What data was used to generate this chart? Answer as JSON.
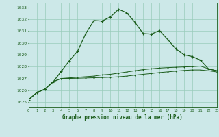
{
  "title": "Graphe pression niveau de la mer (hPa)",
  "background_color": "#cce8e8",
  "grid_color": "#99ccbb",
  "line_color": "#1a5c1a",
  "xlim": [
    0,
    23
  ],
  "ylim": [
    1024.6,
    1033.4
  ],
  "yticks": [
    1025,
    1026,
    1027,
    1028,
    1029,
    1030,
    1031,
    1032,
    1033
  ],
  "xticks": [
    0,
    1,
    2,
    3,
    4,
    5,
    6,
    7,
    8,
    9,
    10,
    11,
    12,
    13,
    14,
    15,
    16,
    17,
    18,
    19,
    20,
    21,
    22,
    23
  ],
  "series1": [
    1025.2,
    1025.8,
    1026.1,
    1026.7,
    1027.6,
    1028.5,
    1029.3,
    1030.8,
    1031.9,
    1031.85,
    1032.2,
    1032.85,
    1032.55,
    1031.75,
    1030.8,
    1030.75,
    1031.05,
    1030.3,
    1029.5,
    1029.0,
    1028.85,
    1028.55,
    1027.8,
    1027.65
  ],
  "series2": [
    1025.2,
    1025.8,
    1026.1,
    1026.75,
    1027.0,
    1027.05,
    1027.1,
    1027.15,
    1027.2,
    1027.3,
    1027.35,
    1027.45,
    1027.55,
    1027.65,
    1027.75,
    1027.82,
    1027.88,
    1027.92,
    1027.95,
    1027.98,
    1028.0,
    1028.05,
    1027.82,
    1027.65
  ],
  "series3": [
    1025.2,
    1025.8,
    1026.1,
    1026.7,
    1027.0,
    1027.0,
    1027.02,
    1027.04,
    1027.06,
    1027.08,
    1027.1,
    1027.14,
    1027.2,
    1027.28,
    1027.35,
    1027.42,
    1027.5,
    1027.56,
    1027.62,
    1027.68,
    1027.72,
    1027.72,
    1027.65,
    1027.55
  ]
}
